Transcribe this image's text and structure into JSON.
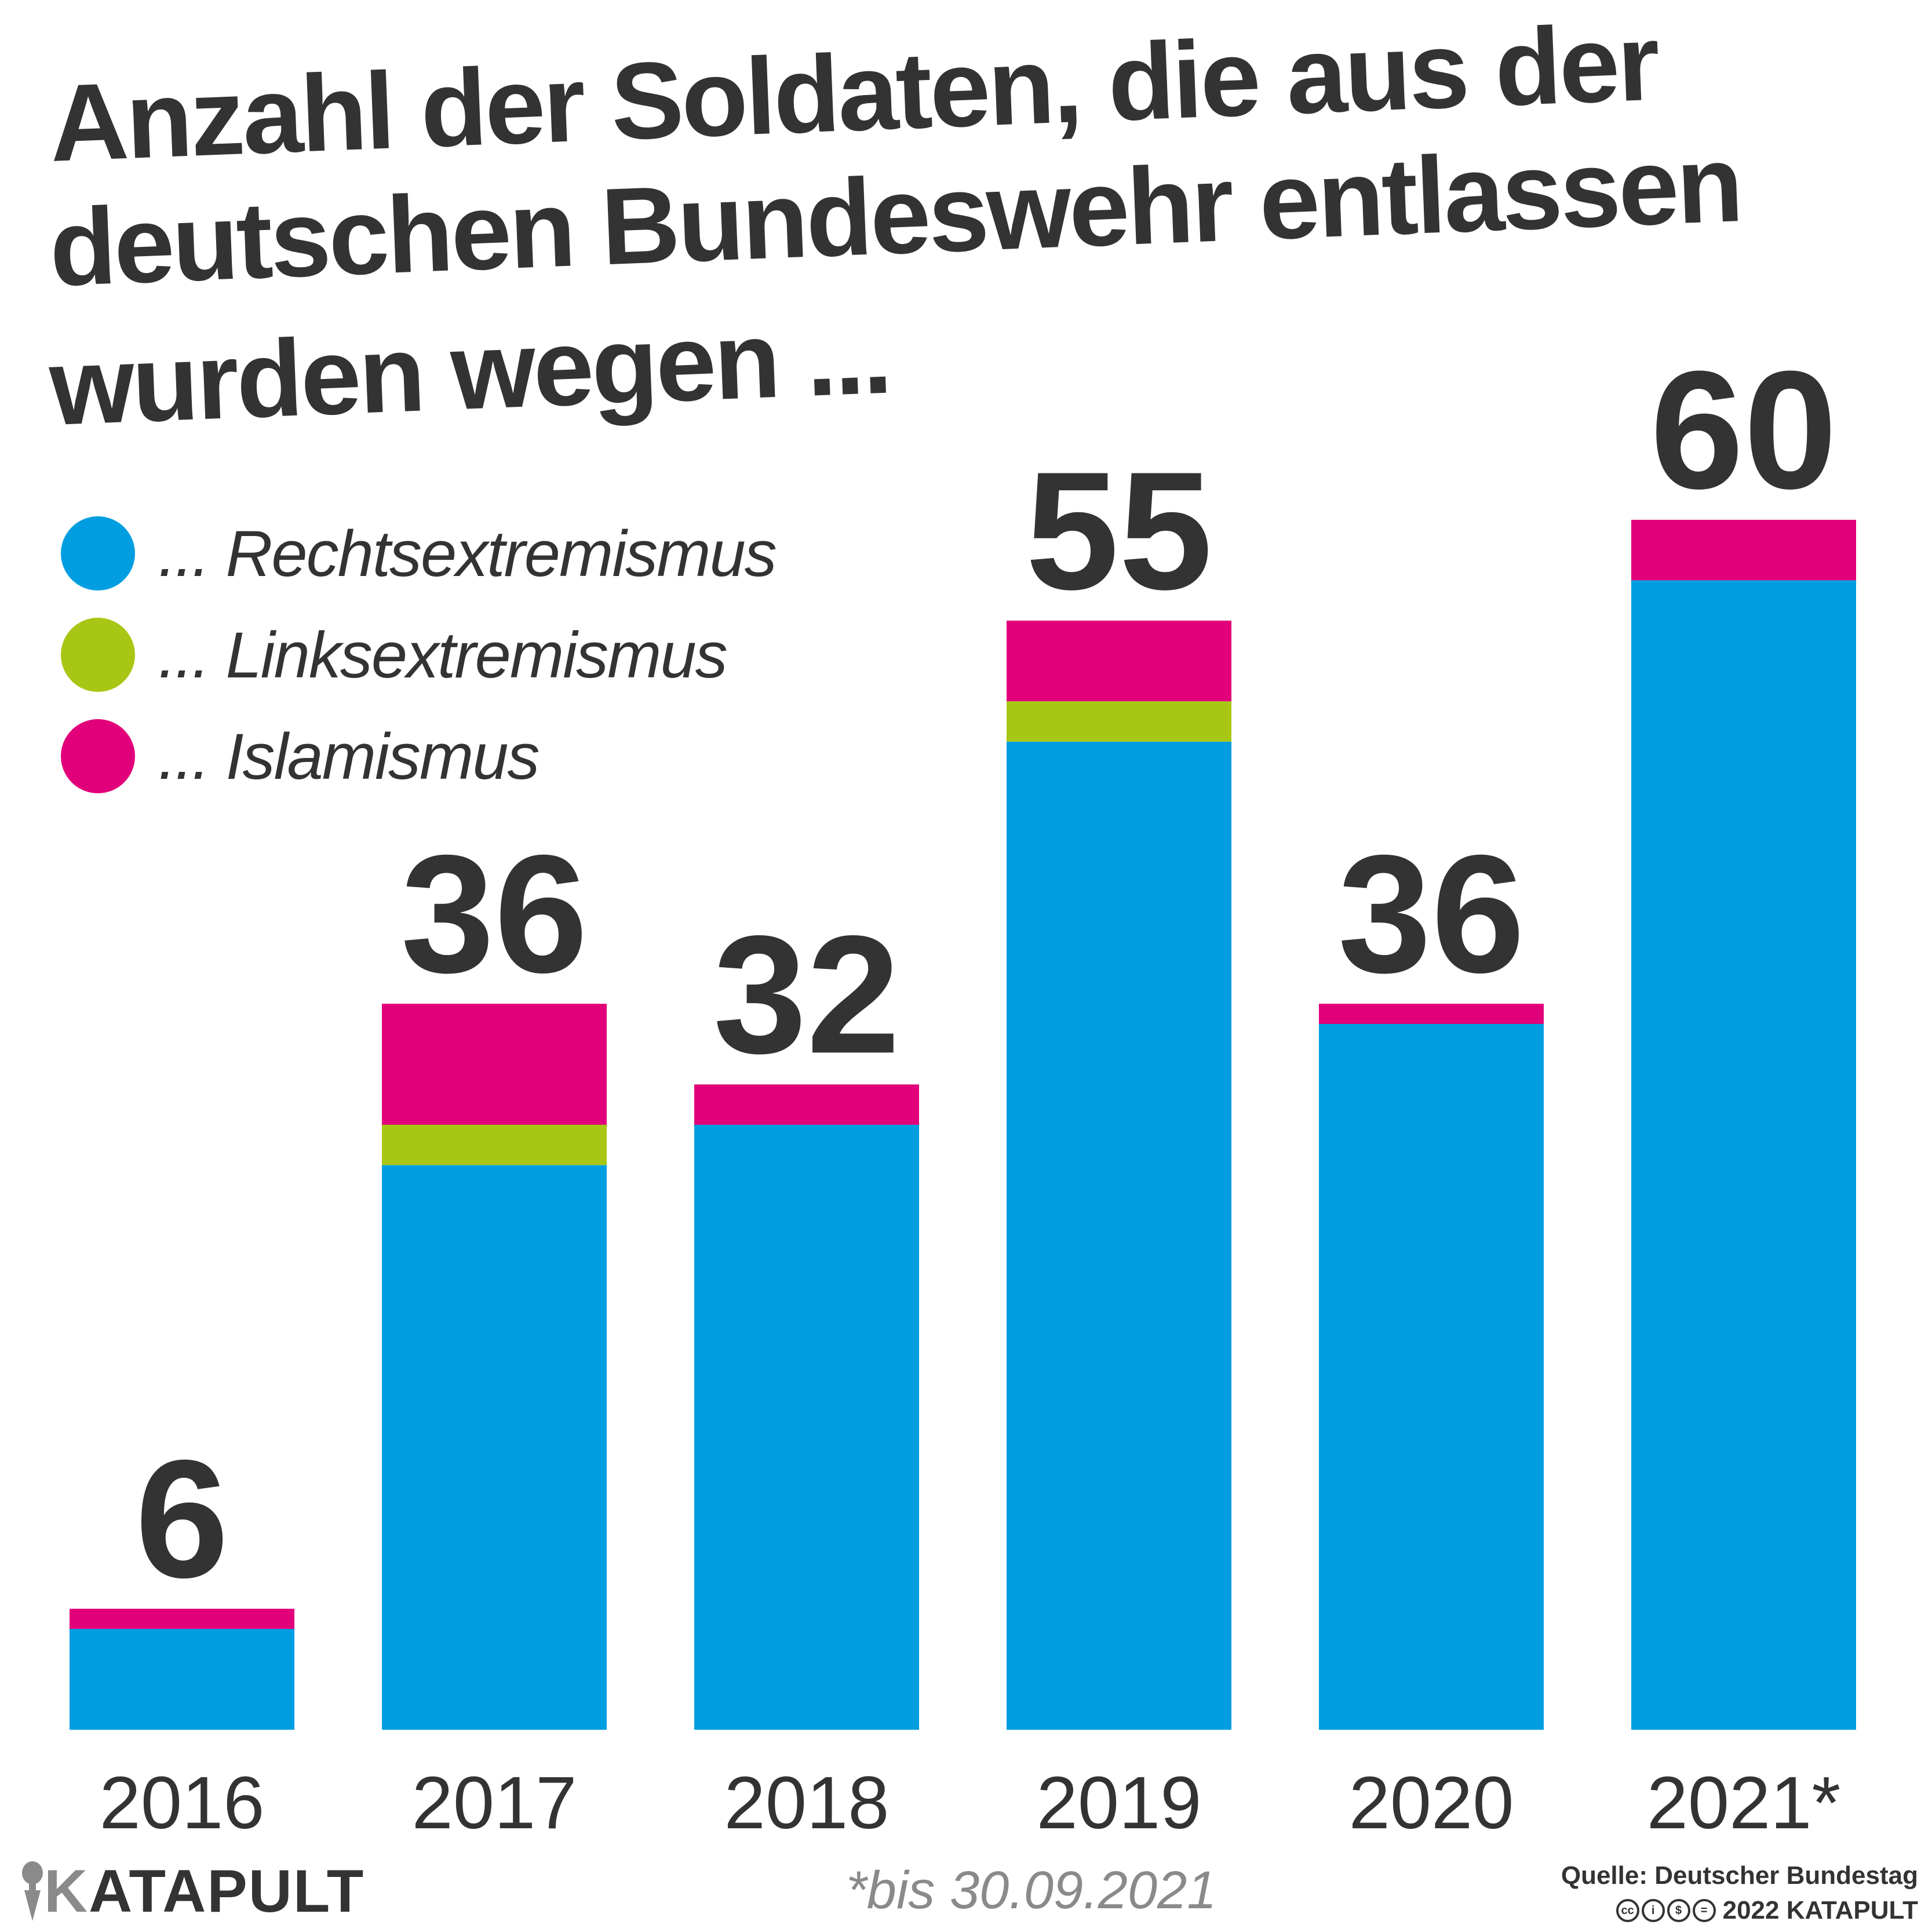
{
  "title_lines": [
    "Anzahl der Soldaten, die aus der",
    "deutschen Bundeswehr entlassen",
    "wurden wegen ..."
  ],
  "legend": [
    {
      "label": "... Rechtsextremismus",
      "color": "#009ee0"
    },
    {
      "label": "... Linksextremismus",
      "color": "#a8c614"
    },
    {
      "label": "... Islamismus",
      "color": "#e2007a"
    }
  ],
  "chart_data": {
    "type": "bar",
    "stacked": true,
    "title": "Anzahl der Soldaten, die aus der deutschen Bundeswehr entlassen wurden wegen ...",
    "categories": [
      "2016",
      "2017",
      "2018",
      "2019",
      "2020",
      "2021*"
    ],
    "series": [
      {
        "name": "... Rechtsextremismus",
        "color": "#009ee0",
        "values": [
          5,
          28,
          30,
          49,
          35,
          57
        ]
      },
      {
        "name": "... Linksextremismus",
        "color": "#a8c614",
        "values": [
          0,
          2,
          0,
          2,
          0,
          0
        ]
      },
      {
        "name": "... Islamismus",
        "color": "#e2007a",
        "values": [
          1,
          6,
          2,
          4,
          1,
          3
        ]
      }
    ],
    "totals": [
      "6",
      "36",
      "32",
      "55",
      "36",
      "60"
    ],
    "ylim": [
      0,
      60
    ],
    "grid": false,
    "legend_position": "top-left"
  },
  "footnote": "*bis 30.09.2021",
  "source": "Quelle: Deutscher Bundestag",
  "copyright": "2022 KATAPULT",
  "brand": {
    "initial": "K",
    "rest": "ATAPULT"
  },
  "icons": [
    "katapult-logo-icon",
    "cc-icon",
    "by-icon",
    "nc-icon",
    "nd-icon"
  ]
}
